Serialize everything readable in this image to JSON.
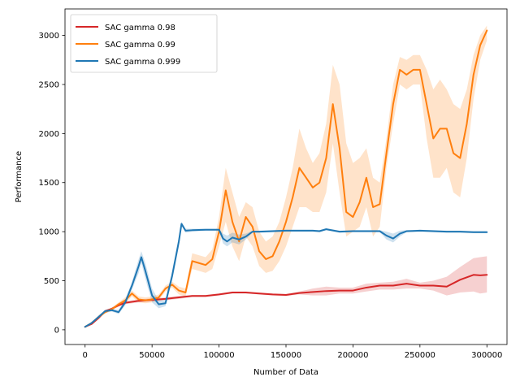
{
  "chart_data": {
    "type": "line",
    "title": "",
    "xlabel": "Number of Data",
    "ylabel": "Performance",
    "xlim": [
      -15000,
      315000
    ],
    "ylim": [
      -150,
      3270
    ],
    "x_ticks": [
      0,
      50000,
      100000,
      150000,
      200000,
      250000,
      300000
    ],
    "y_ticks": [
      0,
      500,
      1000,
      1500,
      2000,
      2500,
      3000
    ],
    "grid": false,
    "legend_position": "upper-left",
    "series": [
      {
        "name": "SAC gamma 0.98",
        "color": "#d62728",
        "x": [
          0,
          5000,
          10000,
          15000,
          20000,
          25000,
          30000,
          40000,
          50000,
          60000,
          70000,
          80000,
          90000,
          100000,
          110000,
          120000,
          130000,
          140000,
          150000,
          160000,
          170000,
          180000,
          190000,
          200000,
          210000,
          220000,
          230000,
          240000,
          250000,
          260000,
          270000,
          280000,
          290000,
          295000,
          300000
        ],
        "y": [
          30,
          60,
          120,
          190,
          215,
          250,
          275,
          295,
          305,
          315,
          330,
          345,
          345,
          360,
          380,
          380,
          370,
          360,
          355,
          375,
          385,
          395,
          400,
          400,
          430,
          450,
          450,
          470,
          450,
          450,
          440,
          510,
          560,
          555,
          560
        ],
        "upper": [
          35,
          70,
          135,
          200,
          225,
          265,
          290,
          310,
          320,
          330,
          345,
          355,
          355,
          370,
          390,
          390,
          380,
          370,
          365,
          390,
          420,
          440,
          430,
          430,
          470,
          480,
          490,
          520,
          480,
          500,
          540,
          640,
          730,
          740,
          750
        ],
        "lower": [
          25,
          50,
          105,
          180,
          205,
          235,
          260,
          280,
          290,
          300,
          315,
          335,
          335,
          350,
          370,
          370,
          360,
          350,
          345,
          360,
          350,
          350,
          370,
          370,
          390,
          410,
          410,
          420,
          420,
          400,
          350,
          380,
          390,
          370,
          380
        ]
      },
      {
        "name": "SAC gamma 0.99",
        "color": "#ff7f0e",
        "x": [
          0,
          5000,
          10000,
          15000,
          20000,
          25000,
          30000,
          35000,
          40000,
          45000,
          50000,
          55000,
          60000,
          65000,
          70000,
          75000,
          80000,
          85000,
          90000,
          95000,
          100000,
          105000,
          110000,
          115000,
          120000,
          125000,
          130000,
          135000,
          140000,
          145000,
          150000,
          155000,
          160000,
          165000,
          170000,
          175000,
          180000,
          185000,
          190000,
          195000,
          200000,
          205000,
          210000,
          215000,
          220000,
          225000,
          230000,
          235000,
          240000,
          245000,
          250000,
          255000,
          260000,
          265000,
          270000,
          275000,
          280000,
          285000,
          290000,
          295000,
          300000
        ],
        "y": [
          30,
          70,
          130,
          180,
          210,
          260,
          300,
          370,
          310,
          300,
          310,
          330,
          420,
          460,
          400,
          380,
          700,
          680,
          660,
          720,
          1000,
          1420,
          1100,
          900,
          1150,
          1050,
          800,
          720,
          750,
          900,
          1100,
          1350,
          1650,
          1550,
          1450,
          1500,
          1750,
          2300,
          1850,
          1200,
          1150,
          1300,
          1550,
          1250,
          1280,
          1800,
          2300,
          2650,
          2600,
          2650,
          2650,
          2300,
          1950,
          2050,
          2050,
          1800,
          1750,
          2100,
          2600,
          2900,
          3050
        ],
        "upper": [
          35,
          80,
          145,
          195,
          225,
          280,
          330,
          400,
          340,
          330,
          340,
          360,
          450,
          490,
          440,
          420,
          780,
          760,
          740,
          820,
          1150,
          1650,
          1400,
          1150,
          1300,
          1250,
          1000,
          900,
          950,
          1100,
          1350,
          1650,
          2050,
          1850,
          1700,
          1800,
          2100,
          2700,
          2500,
          1900,
          1700,
          1750,
          1850,
          1550,
          1500,
          1950,
          2500,
          2780,
          2750,
          2800,
          2800,
          2650,
          2450,
          2550,
          2450,
          2300,
          2250,
          2450,
          2800,
          3000,
          3100
        ],
        "lower": [
          25,
          60,
          115,
          165,
          195,
          240,
          270,
          340,
          280,
          270,
          280,
          300,
          390,
          430,
          360,
          340,
          620,
          600,
          580,
          620,
          850,
          1100,
          850,
          700,
          950,
          850,
          650,
          580,
          600,
          700,
          850,
          1050,
          1250,
          1250,
          1200,
          1200,
          1400,
          1900,
          1400,
          950,
          1000,
          1050,
          1250,
          950,
          1050,
          1650,
          2100,
          2500,
          2450,
          2500,
          2500,
          1950,
          1550,
          1550,
          1650,
          1400,
          1350,
          1750,
          2350,
          2750,
          2950
        ]
      },
      {
        "name": "SAC gamma 0.999",
        "color": "#1f77b4",
        "x": [
          0,
          5000,
          10000,
          15000,
          20000,
          25000,
          30000,
          35000,
          40000,
          42000,
          45000,
          50000,
          55000,
          60000,
          65000,
          70000,
          72000,
          75000,
          80000,
          90000,
          100000,
          103000,
          106000,
          110000,
          115000,
          120000,
          125000,
          130000,
          140000,
          150000,
          160000,
          170000,
          175000,
          180000,
          190000,
          200000,
          210000,
          220000,
          225000,
          230000,
          235000,
          240000,
          250000,
          260000,
          270000,
          280000,
          290000,
          300000
        ],
        "y": [
          30,
          70,
          130,
          190,
          200,
          180,
          280,
          450,
          650,
          740,
          600,
          350,
          260,
          270,
          550,
          900,
          1080,
          1010,
          1015,
          1020,
          1020,
          930,
          900,
          940,
          920,
          950,
          1000,
          1000,
          1005,
          1010,
          1010,
          1010,
          1005,
          1025,
          1000,
          1005,
          1005,
          1005,
          960,
          930,
          980,
          1005,
          1010,
          1005,
          1000,
          1000,
          995,
          995
        ],
        "upper": [
          35,
          80,
          145,
          205,
          215,
          200,
          310,
          490,
          720,
          800,
          680,
          420,
          300,
          300,
          600,
          950,
          1100,
          1030,
          1030,
          1030,
          1030,
          980,
          960,
          990,
          970,
          980,
          1010,
          1010,
          1015,
          1020,
          1020,
          1020,
          1015,
          1035,
          1010,
          1015,
          1015,
          1015,
          1000,
          980,
          1010,
          1015,
          1020,
          1015,
          1010,
          1010,
          1005,
          1005
        ],
        "lower": [
          25,
          60,
          115,
          175,
          185,
          160,
          250,
          410,
          580,
          680,
          520,
          280,
          220,
          240,
          500,
          850,
          1060,
          990,
          1000,
          1010,
          1010,
          880,
          850,
          890,
          870,
          920,
          990,
          990,
          995,
          1000,
          1000,
          1000,
          995,
          1015,
          990,
          995,
          995,
          995,
          920,
          890,
          950,
          995,
          1000,
          995,
          990,
          990,
          985,
          985
        ]
      }
    ]
  }
}
